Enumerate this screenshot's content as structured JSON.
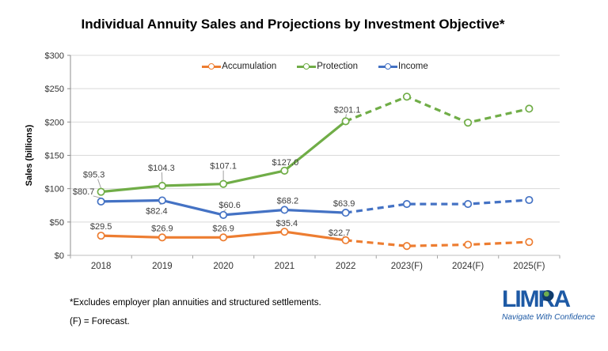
{
  "chart_data": {
    "type": "line",
    "title": "Individual Annuity Sales and Projections by Investment Objective*",
    "ylabel": "Sales (billions)",
    "ylim": [
      0,
      300
    ],
    "y_tick_step": 50,
    "y_tick_labels": [
      "$0",
      "$50",
      "$100",
      "$150",
      "$200",
      "$250",
      "$300"
    ],
    "categories": [
      "2018",
      "2019",
      "2020",
      "2021",
      "2022",
      "2023(F)",
      "2024(F)",
      "2025(F)"
    ],
    "grid": "horizontal",
    "legend_position": "top-center",
    "solid_through_index": 4,
    "forecast_note": "values from 2023(F) onward are dashed projections",
    "series": [
      {
        "name": "Accumulation",
        "color": "#ED7D31",
        "values": [
          29.5,
          26.9,
          26.9,
          35.4,
          22.7,
          14,
          16,
          20
        ],
        "data_labels": [
          "$29.5",
          "$26.9",
          "$26.9",
          "$35.4",
          "$22.7",
          "",
          "",
          ""
        ]
      },
      {
        "name": "Protection",
        "color": "#70AD47",
        "values": [
          95.3,
          104.3,
          107.1,
          127.0,
          201.1,
          238,
          199,
          220
        ],
        "data_labels": [
          "$95.3",
          "$104.3",
          "$107.1",
          "$127.0",
          "$201.1",
          "",
          "",
          ""
        ]
      },
      {
        "name": "Income",
        "color": "#4472C4",
        "values": [
          80.7,
          82.4,
          60.6,
          68.2,
          63.9,
          77,
          77,
          83
        ],
        "data_labels": [
          "$80.7",
          "$82.4",
          "$60.6",
          "$68.2",
          "$63.9",
          "",
          "",
          ""
        ]
      }
    ]
  },
  "footnotes": [
    "*Excludes employer plan annuities and structured settlements.",
    "(F) = Forecast."
  ],
  "logo": {
    "name": "LIMRA",
    "tagline": "Navigate With Confidence",
    "color": "#1E5AA5"
  }
}
